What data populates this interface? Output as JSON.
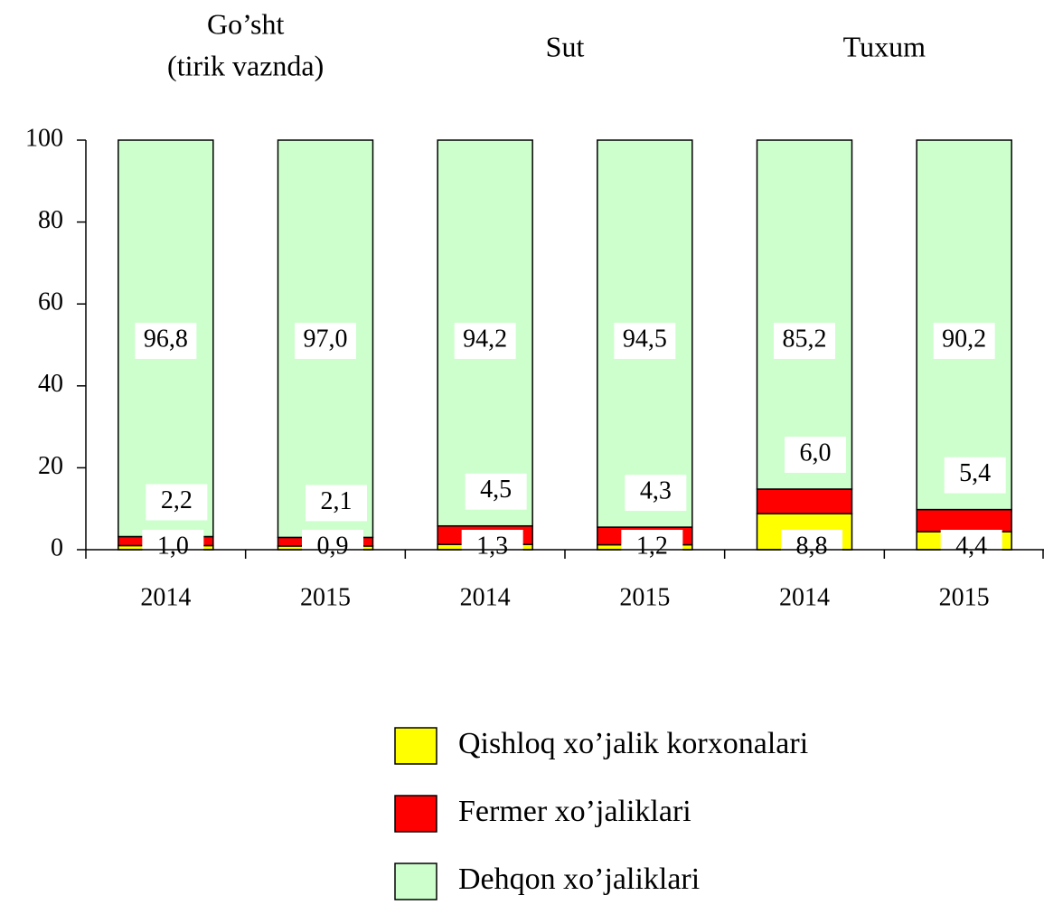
{
  "chart_data": {
    "type": "stacked_bar",
    "group_labels": [
      [
        "Go’sht",
        "(tirik vaznda)"
      ],
      [
        "Sut"
      ],
      [
        "Tuxum"
      ]
    ],
    "categories": [
      "2014",
      "2015",
      "2014",
      "2015",
      "2014",
      "2015"
    ],
    "series": [
      {
        "name": "Qishloq xo’jalik korxonalari",
        "color": "#ffff00",
        "values": [
          1.0,
          0.9,
          1.3,
          1.2,
          8.8,
          4.4
        ],
        "value_labels": [
          "1,0",
          "0,9",
          "1,3",
          "1,2",
          "8,8",
          "4,4"
        ]
      },
      {
        "name": "Fermer xo’jaliklari",
        "color": "#ff0000",
        "values": [
          2.2,
          2.1,
          4.5,
          4.3,
          6.0,
          5.4
        ],
        "value_labels": [
          "2,2",
          "2,1",
          "4,5",
          "4,3",
          "6,0",
          "5,4"
        ]
      },
      {
        "name": "Dehqon xo’jaliklari",
        "color": "#ccffcc",
        "values": [
          96.8,
          97.0,
          94.2,
          94.5,
          85.2,
          90.2
        ],
        "value_labels": [
          "96,8",
          "97,0",
          "94,2",
          "94,5",
          "85,2",
          "90,2"
        ]
      }
    ],
    "ylim": [
      0,
      100
    ],
    "yticks": [
      0,
      20,
      40,
      60,
      80,
      100
    ],
    "legend": "bottom"
  }
}
